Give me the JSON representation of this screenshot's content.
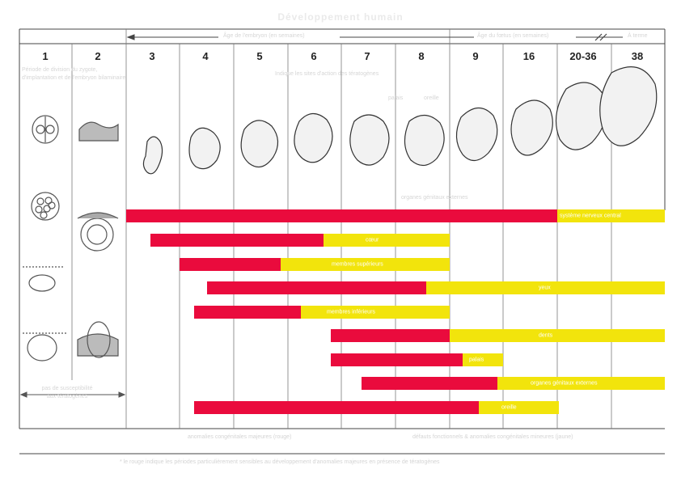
{
  "title": "Développement humain",
  "header": {
    "embryo_age": "Âge de l'embryon (en semaines)",
    "fetus_age": "Âge du fœtus (en semaines)",
    "term": "À terme",
    "week_labels": [
      "1",
      "2",
      "3",
      "4",
      "5",
      "6",
      "7",
      "8",
      "9",
      "16",
      "20-36",
      "38"
    ]
  },
  "notes": {
    "first_weeks": "Période de division du zygote, d'implantation et de l'embryon bilaminaire",
    "target_sites": "Indique les sites d'action des tératogènes",
    "external_genitalia": "organes génitaux externes",
    "palate": "palais",
    "ear": "oreille",
    "not_susceptible": "pas de susceptibilité aux tératogènes"
  },
  "bars": [
    {
      "label": "système nerveux central"
    },
    {
      "label": "cœur"
    },
    {
      "label": "membres supérieurs"
    },
    {
      "label": "yeux"
    },
    {
      "label": "membres inférieurs"
    },
    {
      "label": "dents"
    },
    {
      "label": "palais"
    },
    {
      "label": "organes génitaux externes"
    },
    {
      "label": "oreille"
    }
  ],
  "footer": {
    "major": "anomalies congénitales majeures (rouge)",
    "minor": "défauts fonctionnels & anomalies congénitales mineures (jaune)",
    "footnote": "* le rouge indique les périodes particulièrement sensibles au développement d'anomalies majeures en présence de tératogènes"
  },
  "colors": {
    "major": "#ea0b3d",
    "minor": "#f2e40c"
  }
}
